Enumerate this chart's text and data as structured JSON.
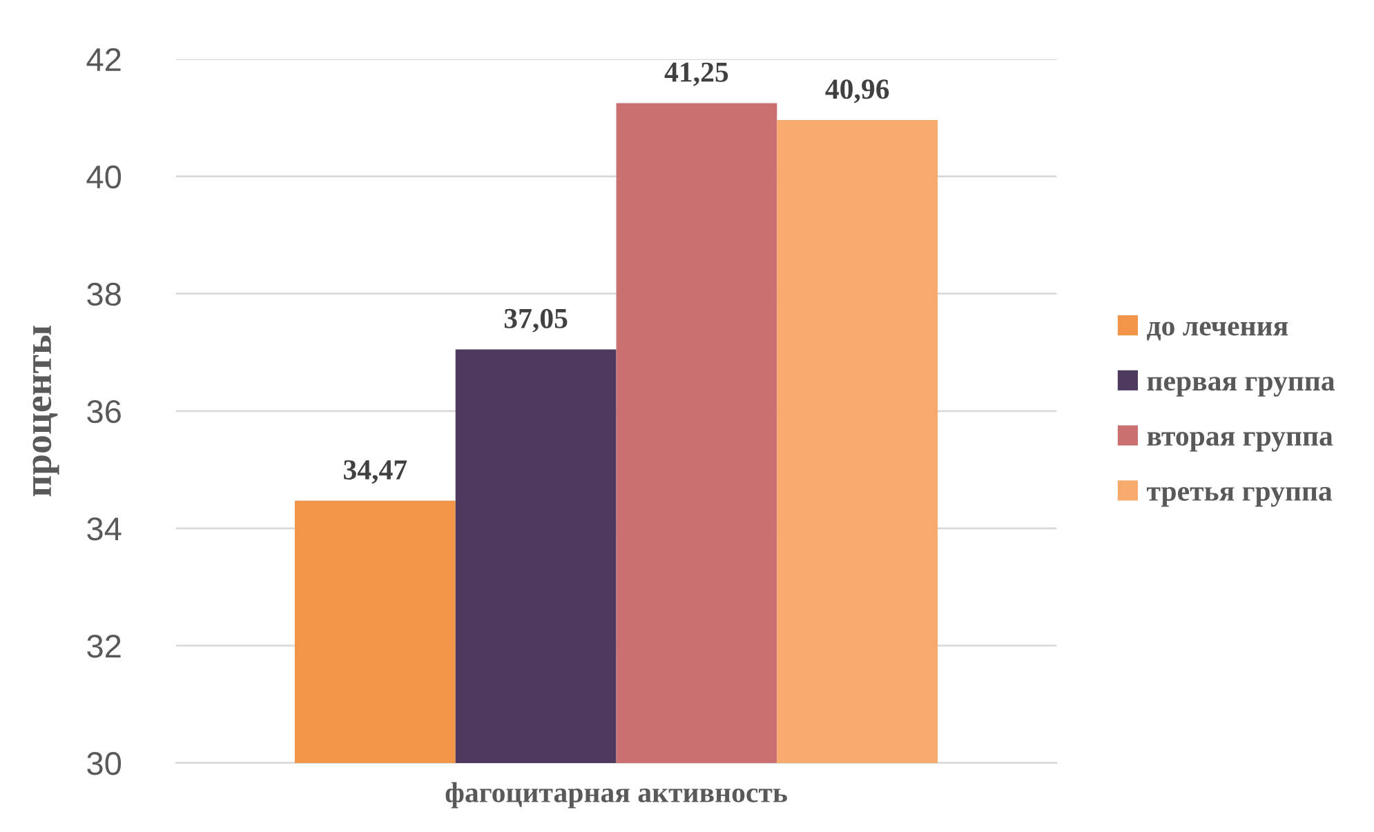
{
  "chart_data": {
    "type": "bar",
    "categories": [
      "фагоцитарная активность"
    ],
    "ylabel": "проценты",
    "series": [
      {
        "name": "до лечения",
        "color": "#f39548",
        "values": [
          34.47
        ],
        "value_labels": [
          "34,47"
        ]
      },
      {
        "name": "первая группа",
        "color": "#4e3a5e",
        "values": [
          37.05
        ],
        "value_labels": [
          "37,05"
        ]
      },
      {
        "name": "вторая группа",
        "color": "#cb7070",
        "values": [
          41.25
        ],
        "value_labels": [
          "41,25"
        ]
      },
      {
        "name": "третья группа",
        "color": "#f6aa6c",
        "values": [
          40.96
        ],
        "value_labels": [
          "40,96"
        ]
      }
    ],
    "ylim": [
      30,
      42
    ],
    "yticks": [
      30,
      32,
      34,
      36,
      38,
      40,
      42
    ],
    "grid": "y",
    "legend": "right"
  }
}
